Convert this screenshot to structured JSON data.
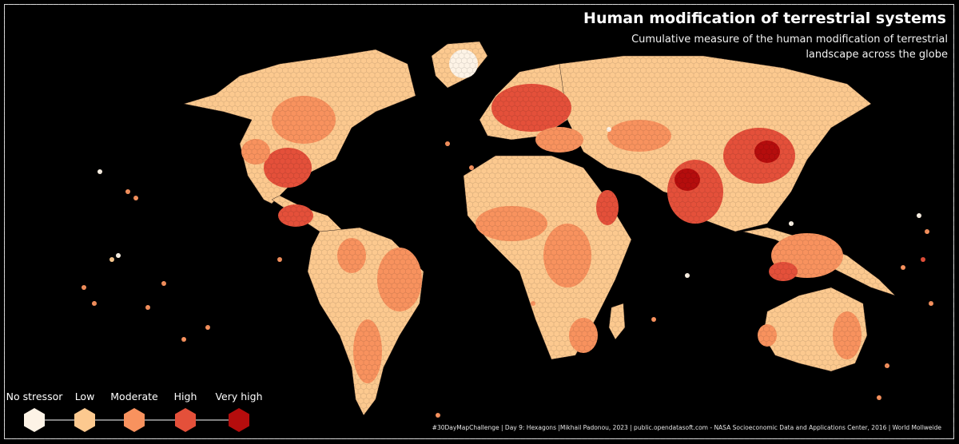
{
  "title": "Human modification of terrestrial systems",
  "subtitle": "Cumulative measure of the human modification of terrestrial landscape across the globe",
  "credit": "#30DayMapChallenge | Day 9: Hexagons |Mikhail Padonou, 2023 | public.opendatasoft.com - NASA Socioeconomic Data and Applications Center, 2016 | World Mollweide",
  "legend": {
    "items": [
      {
        "label": "No stressor",
        "color": "#fdf3e6"
      },
      {
        "label": "Low",
        "color": "#fcc98f"
      },
      {
        "label": "Moderate",
        "color": "#f8925e"
      },
      {
        "label": "High",
        "color": "#e4503a"
      },
      {
        "label": "Very high",
        "color": "#b50d0d"
      }
    ]
  },
  "colors": {
    "background": "#000000",
    "frame": "#d9d9d9",
    "land_base": "#fcc98f",
    "borders": "#3a2a20"
  }
}
